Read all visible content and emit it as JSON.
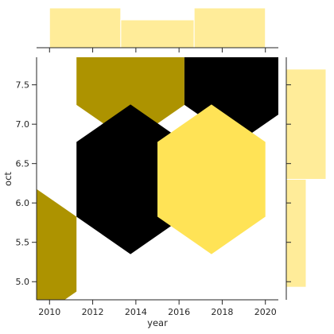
{
  "chart_data": {
    "type": "hexbin-jointplot",
    "xlabel": "year",
    "ylabel": "oct",
    "xlim": [
      2009.4,
      2020.6
    ],
    "ylim": [
      4.77,
      7.85
    ],
    "xticks": [
      2010,
      2012,
      2014,
      2016,
      2018,
      2020
    ],
    "yticks": [
      5.0,
      5.5,
      6.0,
      6.5,
      7.0,
      7.5
    ],
    "xtick_labels": [
      "2010",
      "2012",
      "2014",
      "2016",
      "2018",
      "2020"
    ],
    "ytick_labels": [
      "5.0",
      "5.5",
      "6.0",
      "6.5",
      "7.0",
      "7.5"
    ],
    "hexbins": [
      {
        "x": 2008.75,
        "y": 5.35,
        "count": 1
      },
      {
        "x": 2013.75,
        "y": 7.72,
        "count": 1
      },
      {
        "x": 2018.75,
        "y": 7.72,
        "count": 2
      },
      {
        "x": 2013.75,
        "y": 6.3,
        "count": 2
      },
      {
        "x": 2017.5,
        "y": 6.3,
        "count": 0
      }
    ],
    "top_marginal": {
      "type": "histogram",
      "bins": [
        [
          2010,
          2013.3
        ],
        [
          2013.3,
          2016.7
        ],
        [
          2016.7,
          2020
        ]
      ],
      "counts": [
        2,
        1.4,
        2
      ]
    },
    "right_marginal": {
      "type": "histogram",
      "bins": [
        [
          4.93,
          6.3
        ],
        [
          6.3,
          7.7
        ]
      ],
      "counts": [
        1,
        2
      ]
    },
    "colors": {
      "hex_low": "#ffe356",
      "hex_mid": "#ad9300",
      "hex_high": "#000000",
      "marginal": "#ffec99",
      "marginal_edge": "#ffffff",
      "axis": "#262626"
    }
  }
}
